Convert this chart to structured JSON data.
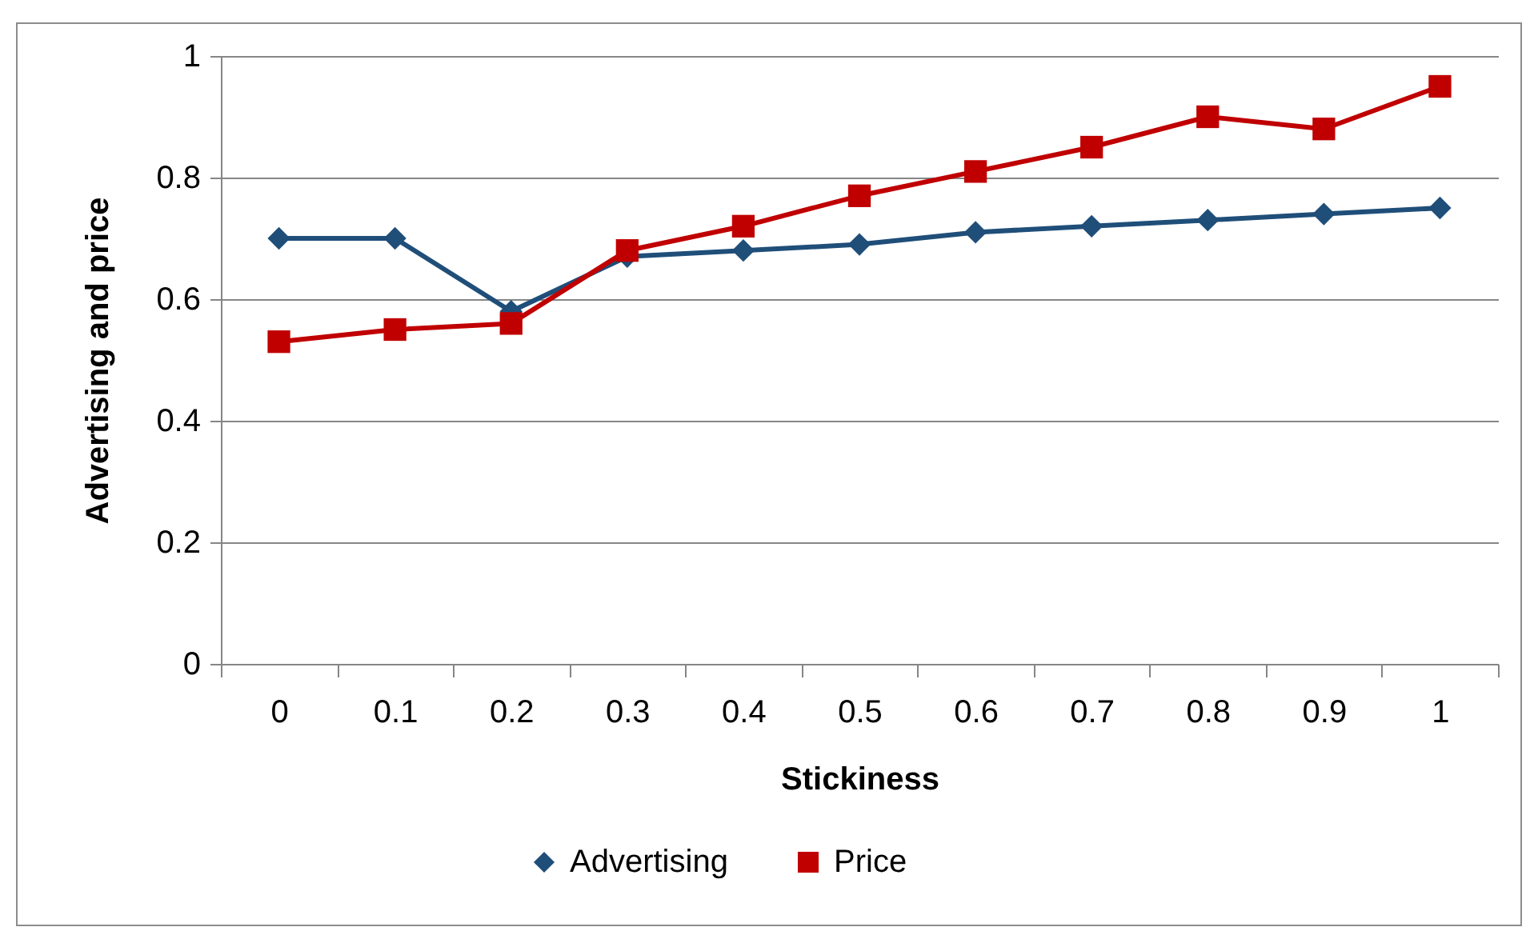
{
  "chart_data": {
    "type": "line",
    "xlabel": "Stickiness",
    "ylabel": "Advertising and price",
    "categories": [
      "0",
      "0.1",
      "0.2",
      "0.3",
      "0.4",
      "0.5",
      "0.6",
      "0.7",
      "0.8",
      "0.9",
      "1"
    ],
    "series": [
      {
        "name": "Advertising",
        "color": "#1f4e79",
        "marker": "diamond",
        "values": [
          0.7,
          0.7,
          0.58,
          0.67,
          0.68,
          0.69,
          0.71,
          0.72,
          0.73,
          0.74,
          0.75
        ]
      },
      {
        "name": "Price",
        "color": "#c00000",
        "marker": "square",
        "values": [
          0.53,
          0.55,
          0.56,
          0.68,
          0.72,
          0.77,
          0.81,
          0.85,
          0.9,
          0.88,
          0.95
        ]
      }
    ],
    "ylim": [
      0,
      1
    ],
    "yticks": [
      0,
      0.2,
      0.4,
      0.6,
      0.8,
      1
    ],
    "grid": "y",
    "legend": "bottom",
    "line_style": "solid"
  }
}
